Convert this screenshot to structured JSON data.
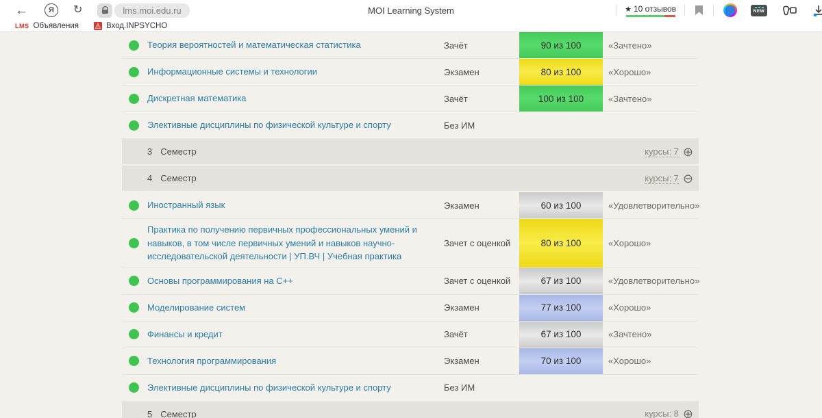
{
  "browser": {
    "url": "lms.moi.edu.ru",
    "title": "MOI Learning System",
    "reviews": {
      "star": "★",
      "label": "10 отзывов"
    },
    "icons": {
      "back": "←",
      "refresh": "↻",
      "yandex_letter": "Я",
      "lock": "lock-icon",
      "bookmark_flag": "bookmark-flag-icon",
      "extension_circle": "colorful-circle-icon",
      "new_badge_label": "NEW",
      "collections": "collections-icon",
      "download": "download-icon"
    },
    "bookmarks": [
      {
        "logo": "LMS",
        "label": "Объявления"
      },
      {
        "logo": "inpsycho-emblem",
        "label": "Вход.INPSYCHO"
      }
    ]
  },
  "colors": {
    "green": "linear-gradient(180deg,#43ca57,#58da6d 50%,#43ca57)",
    "yellow": "linear-gradient(180deg,#eed816,#f8ec49 50%,#eed816)",
    "gray": "linear-gradient(180deg,#c9c9c9,#e9e9e9 52%,#cccccc)",
    "blue": "linear-gradient(180deg,#a8b7e6,#c4cef2 50%,#a8b7e6)",
    "dot_green": "#3fc44f",
    "link_blue": "#2e7ca8"
  },
  "table": {
    "rows": [
      {
        "type": "course",
        "name": "Теория вероятностей и математическая статистика",
        "control": "Зачёт",
        "score": "90 из 100",
        "score_color": "green",
        "grade": "«Зачтено»"
      },
      {
        "type": "course",
        "name": "Информационные системы и технологии",
        "control": "Экзамен",
        "score": "80 из 100",
        "score_color": "yellow",
        "grade": "«Хорошо»"
      },
      {
        "type": "course",
        "name": "Дискретная математика",
        "control": "Зачёт",
        "score": "100 из 100",
        "score_color": "green",
        "grade": "«Зачтено»"
      },
      {
        "type": "course",
        "name": "Элективные дисциплины по физической культуре и спорту",
        "control": "Без ИМ",
        "score": null,
        "score_color": null,
        "grade": null
      },
      {
        "type": "semester",
        "number": "3",
        "label": "Семестр",
        "courses_link": "курсы: 7",
        "toggle": "plus"
      },
      {
        "type": "semester",
        "number": "4",
        "label": "Семестр",
        "courses_link": "курсы: 7",
        "toggle": "minus"
      },
      {
        "type": "course",
        "name": "Иностранный язык",
        "control": "Экзамен",
        "score": "60 из 100",
        "score_color": "gray",
        "grade": "«Удовлетворительно»"
      },
      {
        "type": "course",
        "name": "Практика по получению первичных профессиональных умений и навыков, в том числе первичных умений и навыков научно-исследовательской деятельности | УП.ВЧ | Учебная практика",
        "control": "Зачет с оценкой",
        "score": "80 из 100",
        "score_color": "yellow",
        "grade": "«Хорошо»"
      },
      {
        "type": "course",
        "name": "Основы программирования на C++",
        "control": "Зачет с оценкой",
        "score": "67 из 100",
        "score_color": "gray",
        "grade": "«Удовлетворительно»"
      },
      {
        "type": "course",
        "name": "Моделирование систем",
        "control": "Экзамен",
        "score": "77 из 100",
        "score_color": "blue",
        "grade": "«Хорошо»"
      },
      {
        "type": "course",
        "name": "Финансы и кредит",
        "control": "Зачёт",
        "score": "67 из 100",
        "score_color": "gray",
        "grade": "«Зачтено»"
      },
      {
        "type": "course",
        "name": "Технология программирования",
        "control": "Экзамен",
        "score": "70 из 100",
        "score_color": "blue",
        "grade": "«Хорошо»"
      },
      {
        "type": "course",
        "name": "Элективные дисциплины по физической культуре и спорту",
        "control": "Без ИМ",
        "score": null,
        "score_color": null,
        "grade": null
      },
      {
        "type": "semester",
        "number": "5",
        "label": "Семестр",
        "courses_link": "курсы: 8",
        "toggle": "plus"
      }
    ]
  },
  "glyphs": {
    "plus": "⊕",
    "minus": "⊖"
  }
}
